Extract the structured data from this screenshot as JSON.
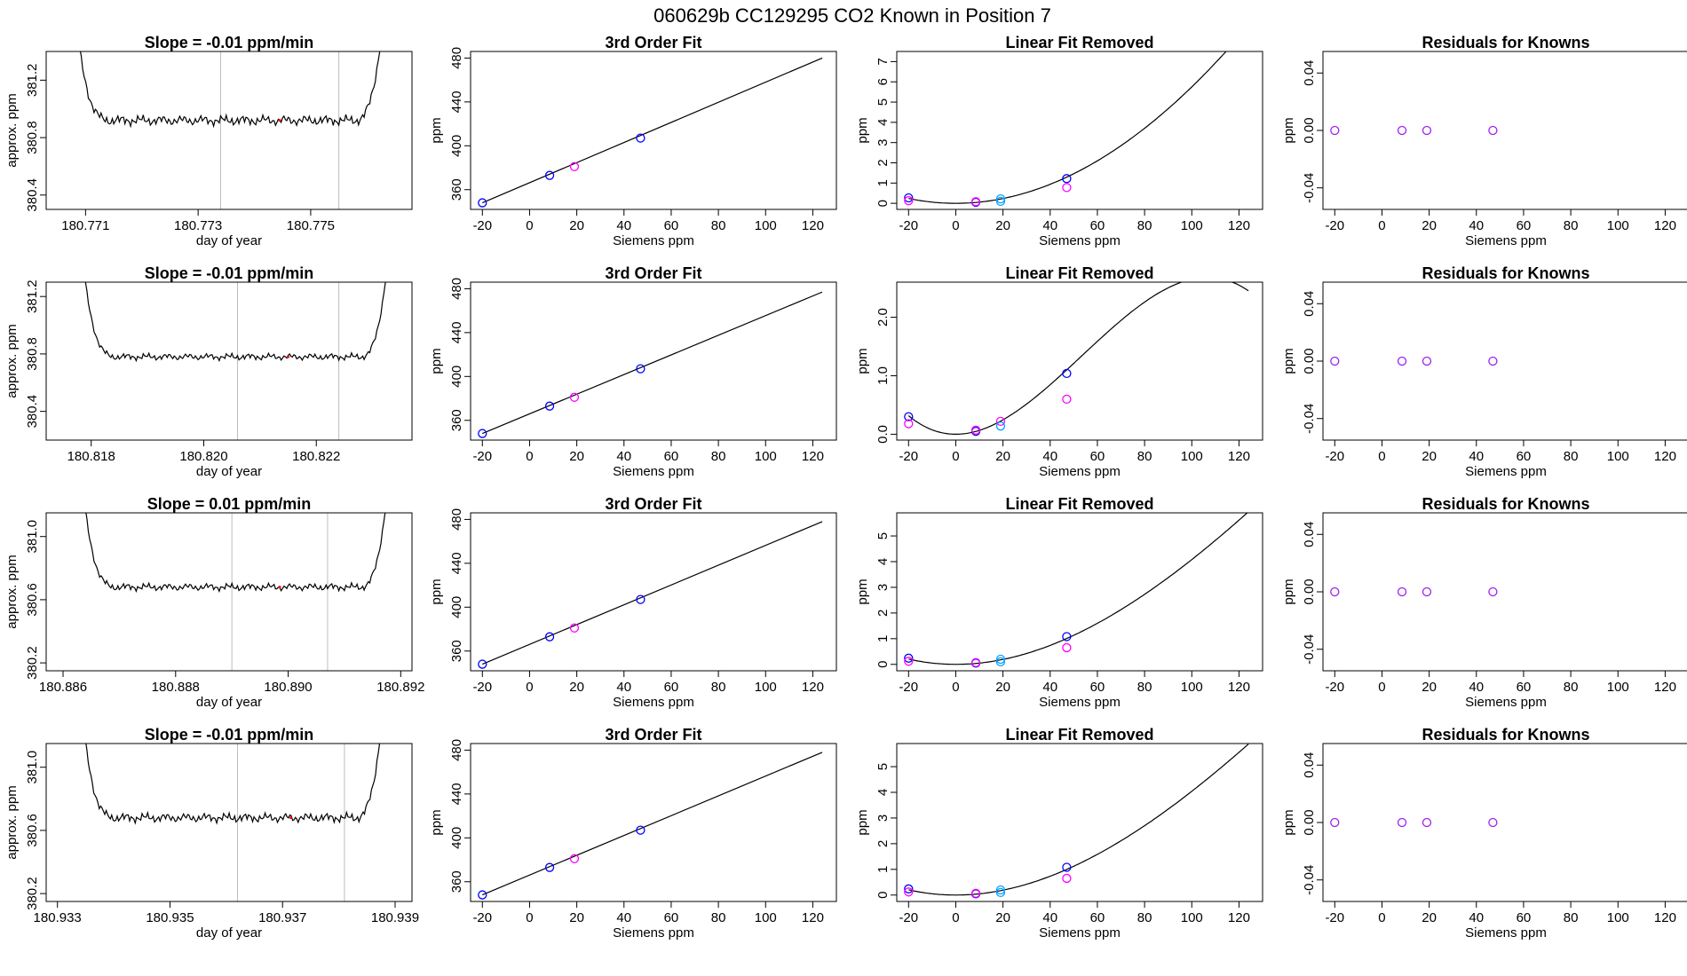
{
  "page_title": "060629b      CC129295    CO2 Known in Position  7",
  "colors": {
    "curve": "#000000",
    "grid": "#bebebe",
    "blue": "#0000ff",
    "magenta": "#ff00ff",
    "cyan": "#00a0ff",
    "purple": "#a020f0",
    "red": "#ff0000"
  },
  "chart_data": [
    {
      "id": "r1c1",
      "type": "line",
      "title": "Slope =  -0.01  ppm/min",
      "xlabel": "day of year",
      "ylabel": "approx. ppm",
      "xlim": [
        180.7703,
        180.7768
      ],
      "ylim": [
        380.3,
        381.4
      ],
      "xticks": [
        180.771,
        180.773,
        180.775
      ],
      "xtick_labels": [
        "180.771",
        "180.773",
        "180.775"
      ],
      "yticks": [
        380.4,
        380.8,
        381.2
      ],
      "ytick_labels": [
        "380.4",
        "380.8",
        "381.2"
      ],
      "vlines": [
        180.7734,
        180.7755
      ],
      "xstart": 180.7708,
      "xend": 180.7763,
      "plateau": 380.92,
      "top_value": 381.4,
      "amp": 0.03
    },
    {
      "id": "r1c2",
      "type": "scatter",
      "title": "3rd Order Fit",
      "xlabel": "Siemens ppm",
      "ylabel": "ppm",
      "xlim": [
        -25,
        130
      ],
      "ylim": [
        342,
        486
      ],
      "xticks": [
        -20,
        0,
        20,
        40,
        60,
        80,
        100,
        120
      ],
      "xtick_labels": [
        "-20",
        "0",
        "20",
        "40",
        "60",
        "80",
        "100",
        "120"
      ],
      "yticks": [
        360,
        400,
        440,
        480
      ],
      "ytick_labels": [
        "360",
        "400",
        "440",
        "480"
      ],
      "line": {
        "x0": -20,
        "y0": 348,
        "x1": 124,
        "y1": 480
      },
      "points": [
        {
          "x": -20,
          "y": 348,
          "c": "blue"
        },
        {
          "x": 8.5,
          "y": 373,
          "c": "blue"
        },
        {
          "x": 19,
          "y": 381,
          "c": "magenta"
        },
        {
          "x": 47,
          "y": 407,
          "c": "blue"
        }
      ]
    },
    {
      "id": "r1c3",
      "type": "scatter",
      "title": "Linear Fit Removed",
      "xlabel": "Siemens ppm",
      "ylabel": "ppm",
      "xlim": [
        -25,
        130
      ],
      "ylim": [
        -0.3,
        7.5
      ],
      "xticks": [
        -20,
        0,
        20,
        40,
        60,
        80,
        100,
        120
      ],
      "xtick_labels": [
        "-20",
        "0",
        "20",
        "40",
        "60",
        "80",
        "100",
        "120"
      ],
      "yticks": [
        0,
        1,
        2,
        3,
        4,
        5,
        6,
        7
      ],
      "ytick_labels": [
        "0",
        "1",
        "2",
        "3",
        "4",
        "5",
        "6",
        "7"
      ],
      "curve": {
        "a": 0.000595,
        "b": -2e-07,
        "xmin": -20,
        "xmax": 124
      },
      "points": [
        {
          "x": -20,
          "y": 0.27,
          "c": "blue"
        },
        {
          "x": -20,
          "y": 0.13,
          "c": "magenta"
        },
        {
          "x": 8.5,
          "y": 0.05,
          "c": "blue"
        },
        {
          "x": 8.5,
          "y": 0.08,
          "c": "magenta"
        },
        {
          "x": 19,
          "y": 0.22,
          "c": "cyan"
        },
        {
          "x": 19,
          "y": 0.1,
          "c": "cyan"
        },
        {
          "x": 47,
          "y": 1.22,
          "c": "blue"
        },
        {
          "x": 47,
          "y": 0.78,
          "c": "magenta"
        }
      ]
    },
    {
      "id": "r1c4",
      "type": "scatter",
      "title": "Residuals for Knowns",
      "xlabel": "Siemens ppm",
      "ylabel": "ppm",
      "xlim": [
        -25,
        130
      ],
      "ylim": [
        -0.055,
        0.055
      ],
      "xticks": [
        -20,
        0,
        20,
        40,
        60,
        80,
        100,
        120
      ],
      "xtick_labels": [
        "-20",
        "0",
        "20",
        "40",
        "60",
        "80",
        "100",
        "120"
      ],
      "yticks": [
        -0.04,
        0,
        0.04
      ],
      "ytick_labels": [
        "-0.04",
        "0.00",
        "0.04"
      ],
      "points": [
        {
          "x": -20,
          "y": 0,
          "c": "purple"
        },
        {
          "x": 8.5,
          "y": 0,
          "c": "purple"
        },
        {
          "x": 19,
          "y": 0,
          "c": "purple"
        },
        {
          "x": 47,
          "y": 0,
          "c": "purple"
        }
      ]
    },
    {
      "id": "r2c1",
      "type": "line",
      "title": "Slope =  -0.01  ppm/min",
      "xlabel": "day of year",
      "ylabel": "approx. ppm",
      "xlim": [
        180.8172,
        180.8237
      ],
      "ylim": [
        380.2,
        381.3
      ],
      "xticks": [
        180.818,
        180.82,
        180.822
      ],
      "xtick_labels": [
        "180.818",
        "180.820",
        "180.822"
      ],
      "yticks": [
        380.4,
        380.8,
        381.2
      ],
      "ytick_labels": [
        "380.4",
        "380.8",
        "381.2"
      ],
      "vlines": [
        180.8206,
        180.8224
      ],
      "xstart": 180.8178,
      "xend": 180.8233,
      "plateau": 380.78,
      "top_value": 381.3,
      "amp": 0.02
    },
    {
      "id": "r2c2",
      "type": "scatter",
      "title": "3rd Order Fit",
      "xlabel": "Siemens ppm",
      "ylabel": "ppm",
      "xlim": [
        -25,
        130
      ],
      "ylim": [
        342,
        486
      ],
      "xticks": [
        -20,
        0,
        20,
        40,
        60,
        80,
        100,
        120
      ],
      "xtick_labels": [
        "-20",
        "0",
        "20",
        "40",
        "60",
        "80",
        "100",
        "120"
      ],
      "yticks": [
        360,
        400,
        440,
        480
      ],
      "ytick_labels": [
        "360",
        "400",
        "440",
        "480"
      ],
      "line": {
        "x0": -20,
        "y0": 348,
        "x1": 124,
        "y1": 477
      },
      "points": [
        {
          "x": -20,
          "y": 348,
          "c": "blue"
        },
        {
          "x": 8.5,
          "y": 373,
          "c": "blue"
        },
        {
          "x": 19,
          "y": 381,
          "c": "magenta"
        },
        {
          "x": 47,
          "y": 407,
          "c": "blue"
        }
      ]
    },
    {
      "id": "r2c3",
      "type": "scatter",
      "title": "Linear Fit Removed",
      "xlabel": "Siemens ppm",
      "ylabel": "ppm",
      "xlim": [
        -25,
        130
      ],
      "ylim": [
        -0.1,
        2.6
      ],
      "xticks": [
        -20,
        0,
        20,
        40,
        60,
        80,
        100,
        120
      ],
      "xtick_labels": [
        "-20",
        "0",
        "20",
        "40",
        "60",
        "80",
        "100",
        "120"
      ],
      "yticks": [
        0,
        1,
        2
      ],
      "ytick_labels": [
        "0.0",
        "1.0",
        "2.0"
      ],
      "curve": {
        "a": 0.000705,
        "b": -4.4e-06,
        "xmin": -20,
        "xmax": 124
      },
      "points": [
        {
          "x": -20,
          "y": 0.3,
          "c": "blue"
        },
        {
          "x": -20,
          "y": 0.18,
          "c": "magenta"
        },
        {
          "x": 8.5,
          "y": 0.05,
          "c": "blue"
        },
        {
          "x": 8.5,
          "y": 0.07,
          "c": "magenta"
        },
        {
          "x": 19,
          "y": 0.22,
          "c": "magenta"
        },
        {
          "x": 19,
          "y": 0.14,
          "c": "cyan"
        },
        {
          "x": 47,
          "y": 1.04,
          "c": "blue"
        },
        {
          "x": 47,
          "y": 0.6,
          "c": "magenta"
        }
      ]
    },
    {
      "id": "r2c4",
      "type": "scatter",
      "title": "Residuals for Knowns",
      "xlabel": "Siemens ppm",
      "ylabel": "ppm",
      "xlim": [
        -25,
        130
      ],
      "ylim": [
        -0.055,
        0.055
      ],
      "xticks": [
        -20,
        0,
        20,
        40,
        60,
        80,
        100,
        120
      ],
      "xtick_labels": [
        "-20",
        "0",
        "20",
        "40",
        "60",
        "80",
        "100",
        "120"
      ],
      "yticks": [
        -0.04,
        0,
        0.04
      ],
      "ytick_labels": [
        "-0.04",
        "0.00",
        "0.04"
      ],
      "points": [
        {
          "x": -20,
          "y": 0,
          "c": "purple"
        },
        {
          "x": 8.5,
          "y": 0,
          "c": "purple"
        },
        {
          "x": 19,
          "y": 0,
          "c": "purple"
        },
        {
          "x": 47,
          "y": 0,
          "c": "purple"
        }
      ]
    },
    {
      "id": "r3c1",
      "type": "line",
      "title": "Slope =  0.01  ppm/min",
      "xlabel": "day of year",
      "ylabel": "approx. ppm",
      "xlim": [
        180.8857,
        180.8922
      ],
      "ylim": [
        380.15,
        381.15
      ],
      "xticks": [
        180.886,
        180.888,
        180.89,
        180.892
      ],
      "xtick_labels": [
        "180.886",
        "180.888",
        "180.890",
        "180.892"
      ],
      "yticks": [
        380.2,
        380.6,
        381.0
      ],
      "ytick_labels": [
        "380.2",
        "380.6",
        "381.0"
      ],
      "vlines": [
        180.889,
        180.8907
      ],
      "xstart": 180.8863,
      "xend": 180.8918,
      "plateau": 380.68,
      "top_value": 381.15,
      "amp": 0.02
    },
    {
      "id": "r3c2",
      "type": "scatter",
      "title": "3rd Order Fit",
      "xlabel": "Siemens ppm",
      "ylabel": "ppm",
      "xlim": [
        -25,
        130
      ],
      "ylim": [
        342,
        486
      ],
      "xticks": [
        -20,
        0,
        20,
        40,
        60,
        80,
        100,
        120
      ],
      "xtick_labels": [
        "-20",
        "0",
        "20",
        "40",
        "60",
        "80",
        "100",
        "120"
      ],
      "yticks": [
        360,
        400,
        440,
        480
      ],
      "ytick_labels": [
        "360",
        "400",
        "440",
        "480"
      ],
      "line": {
        "x0": -20,
        "y0": 348,
        "x1": 124,
        "y1": 478
      },
      "points": [
        {
          "x": -20,
          "y": 348,
          "c": "blue"
        },
        {
          "x": 8.5,
          "y": 373,
          "c": "blue"
        },
        {
          "x": 19,
          "y": 381,
          "c": "magenta"
        },
        {
          "x": 47,
          "y": 407,
          "c": "blue"
        }
      ]
    },
    {
      "id": "r3c3",
      "type": "scatter",
      "title": "Linear Fit Removed",
      "xlabel": "Siemens ppm",
      "ylabel": "ppm",
      "xlim": [
        -25,
        130
      ],
      "ylim": [
        -0.25,
        5.9
      ],
      "xticks": [
        -20,
        0,
        20,
        40,
        60,
        80,
        100,
        120
      ],
      "xtick_labels": [
        "-20",
        "0",
        "20",
        "40",
        "60",
        "80",
        "100",
        "120"
      ],
      "yticks": [
        0,
        1,
        2,
        3,
        4,
        5
      ],
      "ytick_labels": [
        "0",
        "1",
        "2",
        "3",
        "4",
        "5"
      ],
      "curve": {
        "a": 0.000498,
        "b": -9e-07,
        "xmin": -20,
        "xmax": 124
      },
      "points": [
        {
          "x": -20,
          "y": 0.24,
          "c": "blue"
        },
        {
          "x": -20,
          "y": 0.12,
          "c": "magenta"
        },
        {
          "x": 8.5,
          "y": 0.05,
          "c": "blue"
        },
        {
          "x": 8.5,
          "y": 0.07,
          "c": "magenta"
        },
        {
          "x": 19,
          "y": 0.2,
          "c": "cyan"
        },
        {
          "x": 19,
          "y": 0.1,
          "c": "cyan"
        },
        {
          "x": 47,
          "y": 1.08,
          "c": "blue"
        },
        {
          "x": 47,
          "y": 0.65,
          "c": "magenta"
        }
      ]
    },
    {
      "id": "r3c4",
      "type": "scatter",
      "title": "Residuals for Knowns",
      "xlabel": "Siemens ppm",
      "ylabel": "ppm",
      "xlim": [
        -25,
        130
      ],
      "ylim": [
        -0.055,
        0.055
      ],
      "xticks": [
        -20,
        0,
        20,
        40,
        60,
        80,
        100,
        120
      ],
      "xtick_labels": [
        "-20",
        "0",
        "20",
        "40",
        "60",
        "80",
        "100",
        "120"
      ],
      "yticks": [
        -0.04,
        0,
        0.04
      ],
      "ytick_labels": [
        "-0.04",
        "0.00",
        "0.04"
      ],
      "points": [
        {
          "x": -20,
          "y": 0,
          "c": "purple"
        },
        {
          "x": 8.5,
          "y": 0,
          "c": "purple"
        },
        {
          "x": 19,
          "y": 0,
          "c": "purple"
        },
        {
          "x": 47,
          "y": 0,
          "c": "purple"
        }
      ]
    },
    {
      "id": "r4c1",
      "type": "line",
      "title": "Slope =  -0.01  ppm/min",
      "xlabel": "day of year",
      "ylabel": "approx. ppm",
      "xlim": [
        180.9328,
        180.9393
      ],
      "ylim": [
        380.15,
        381.15
      ],
      "xticks": [
        180.933,
        180.935,
        180.937,
        180.939
      ],
      "xtick_labels": [
        "180.933",
        "180.935",
        "180.937",
        "180.939"
      ],
      "yticks": [
        380.2,
        380.6,
        381.0
      ],
      "ytick_labels": [
        "380.2",
        "380.6",
        "381.0"
      ],
      "vlines": [
        180.9362,
        180.9381
      ],
      "xstart": 180.9334,
      "xend": 180.9388,
      "plateau": 380.68,
      "top_value": 381.15,
      "amp": 0.025
    },
    {
      "id": "r4c2",
      "type": "scatter",
      "title": "3rd Order Fit",
      "xlabel": "Siemens ppm",
      "ylabel": "ppm",
      "xlim": [
        -25,
        130
      ],
      "ylim": [
        342,
        486
      ],
      "xticks": [
        -20,
        0,
        20,
        40,
        60,
        80,
        100,
        120
      ],
      "xtick_labels": [
        "-20",
        "0",
        "20",
        "40",
        "60",
        "80",
        "100",
        "120"
      ],
      "yticks": [
        360,
        400,
        440,
        480
      ],
      "ytick_labels": [
        "360",
        "400",
        "440",
        "480"
      ],
      "line": {
        "x0": -20,
        "y0": 348,
        "x1": 124,
        "y1": 478
      },
      "points": [
        {
          "x": -20,
          "y": 348,
          "c": "blue"
        },
        {
          "x": 8.5,
          "y": 373,
          "c": "blue"
        },
        {
          "x": 19,
          "y": 381,
          "c": "magenta"
        },
        {
          "x": 47,
          "y": 407,
          "c": "blue"
        }
      ]
    },
    {
      "id": "r4c3",
      "type": "scatter",
      "title": "Linear Fit Removed",
      "xlabel": "Siemens ppm",
      "ylabel": "ppm",
      "xlim": [
        -25,
        130
      ],
      "ylim": [
        -0.25,
        5.9
      ],
      "xticks": [
        -20,
        0,
        20,
        40,
        60,
        80,
        100,
        120
      ],
      "xtick_labels": [
        "-20",
        "0",
        "20",
        "40",
        "60",
        "80",
        "100",
        "120"
      ],
      "yticks": [
        0,
        1,
        2,
        3,
        4,
        5
      ],
      "ytick_labels": [
        "0",
        "1",
        "2",
        "3",
        "4",
        "5"
      ],
      "curve": {
        "a": 0.000494,
        "b": -9e-07,
        "xmin": -20,
        "xmax": 124
      },
      "points": [
        {
          "x": -20,
          "y": 0.24,
          "c": "blue"
        },
        {
          "x": -20,
          "y": 0.12,
          "c": "magenta"
        },
        {
          "x": 8.5,
          "y": 0.05,
          "c": "blue"
        },
        {
          "x": 8.5,
          "y": 0.07,
          "c": "magenta"
        },
        {
          "x": 19,
          "y": 0.2,
          "c": "cyan"
        },
        {
          "x": 19,
          "y": 0.1,
          "c": "cyan"
        },
        {
          "x": 47,
          "y": 1.08,
          "c": "blue"
        },
        {
          "x": 47,
          "y": 0.65,
          "c": "magenta"
        }
      ]
    },
    {
      "id": "r4c4",
      "type": "scatter",
      "title": "Residuals for Knowns",
      "xlabel": "Siemens ppm",
      "ylabel": "ppm",
      "xlim": [
        -25,
        130
      ],
      "ylim": [
        -0.055,
        0.055
      ],
      "xticks": [
        -20,
        0,
        20,
        40,
        60,
        80,
        100,
        120
      ],
      "xtick_labels": [
        "-20",
        "0",
        "20",
        "40",
        "60",
        "80",
        "100",
        "120"
      ],
      "yticks": [
        -0.04,
        0,
        0.04
      ],
      "ytick_labels": [
        "-0.04",
        "0.00",
        "0.04"
      ],
      "points": [
        {
          "x": -20,
          "y": 0,
          "c": "purple"
        },
        {
          "x": 8.5,
          "y": 0,
          "c": "purple"
        },
        {
          "x": 19,
          "y": 0,
          "c": "purple"
        },
        {
          "x": 47,
          "y": 0,
          "c": "purple"
        }
      ]
    }
  ]
}
